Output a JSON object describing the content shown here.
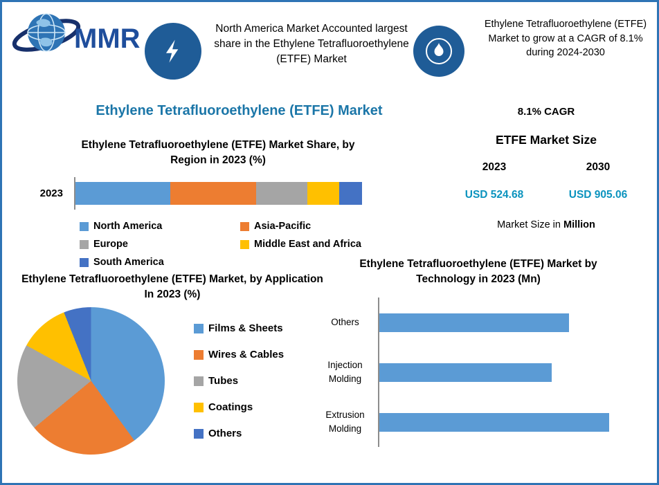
{
  "colors": {
    "border": "#2E74B5",
    "title_teal": "#1B76A8",
    "value_teal": "#0B93BE",
    "icon_circle_blue": "#1F5C97",
    "bar_blue": "#5B9BD5",
    "logo_blue": "#1F4E9C"
  },
  "header": {
    "logo_text": "MMR",
    "callouts": [
      {
        "icon": "lightning-icon",
        "text": "North America Market Accounted largest share in the Ethylene Tetrafluoroethylene (ETFE) Market"
      },
      {
        "icon": "flame-icon",
        "text": "Ethylene Tetrafluoroethylene (ETFE) Market to grow at a CAGR of 8.1% during 2024-2030"
      }
    ]
  },
  "main_title": "Ethylene Tetrafluoroethylene (ETFE) Market",
  "market_size_panel": {
    "cagr": "8.1% CAGR",
    "title": "ETFE Market Size",
    "years": [
      "2023",
      "2030"
    ],
    "values": [
      "USD 524.68",
      "USD 905.06"
    ],
    "note_prefix": "Market Size in ",
    "note_bold": "Million"
  },
  "chart_data": [
    {
      "type": "bar",
      "subtype": "stacked-horizontal",
      "title": "Ethylene Tetrafluoroethylene (ETFE) Market Share, by Region in 2023 (%)",
      "categories": [
        "2023"
      ],
      "unit": "%",
      "legend_position": "bottom",
      "series": [
        {
          "name": "North America",
          "values": [
            33
          ],
          "color": "#5B9BD5"
        },
        {
          "name": "Asia-Pacific",
          "values": [
            30
          ],
          "color": "#ED7D31"
        },
        {
          "name": "Europe",
          "values": [
            18
          ],
          "color": "#A5A5A5"
        },
        {
          "name": "Middle East and Africa",
          "values": [
            11
          ],
          "color": "#FFC000"
        },
        {
          "name": "South America",
          "values": [
            8
          ],
          "color": "#4472C4"
        }
      ]
    },
    {
      "type": "pie",
      "title": "Ethylene Tetrafluoroethylene (ETFE) Market, by Application In 2023 (%)",
      "labels": [
        "Films & Sheets",
        "Wires & Cables",
        "Tubes",
        "Coatings",
        "Others"
      ],
      "values": [
        40,
        24,
        19,
        11,
        6
      ],
      "colors": [
        "#5B9BD5",
        "#ED7D31",
        "#A5A5A5",
        "#FFC000",
        "#4472C4"
      ],
      "unit": "%",
      "legend_position": "right"
    },
    {
      "type": "bar",
      "subtype": "horizontal",
      "title": "Ethylene Tetrafluoroethylene (ETFE) Market by Technology in 2023 (Mn)",
      "categories": [
        "Others",
        "Injection Molding",
        "Extrusion Molding"
      ],
      "values": [
        165,
        150,
        200
      ],
      "xmax": 210,
      "unit": "Mn",
      "color": "#5B9BD5",
      "grid": false
    }
  ]
}
